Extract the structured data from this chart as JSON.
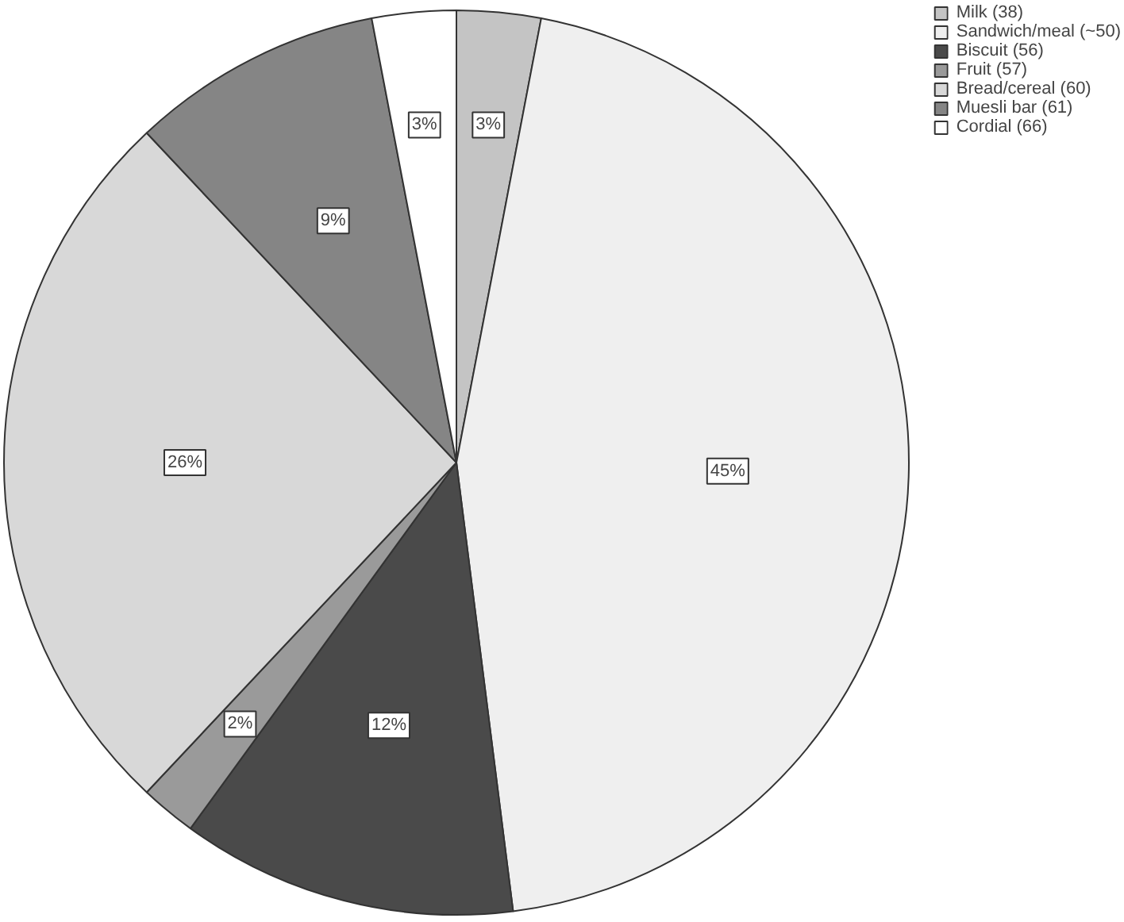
{
  "chart_data": {
    "type": "pie",
    "categories": [
      "Milk (38)",
      "Sandwich/meal (~50)",
      "Biscuit (56)",
      "Fruit (57)",
      "Bread/cereal (60)",
      "Muesli bar (61)",
      "Cordial (66)"
    ],
    "values": [
      3,
      45,
      12,
      2,
      26,
      9,
      3
    ],
    "value_labels": [
      "3%",
      "45%",
      "12%",
      "2%",
      "26%",
      "9%",
      "3%"
    ],
    "colors": [
      "#c4c4c4",
      "#efefef",
      "#4a4a4a",
      "#9a9a9a",
      "#d8d8d8",
      "#858585",
      "#ffffff"
    ],
    "legend": "top right"
  }
}
